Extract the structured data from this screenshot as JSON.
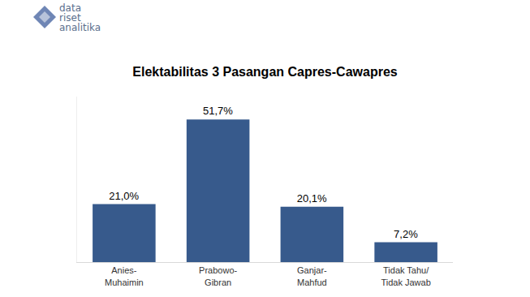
{
  "chart_data": {
    "type": "bar",
    "title": "Elektabilitas 3 Pasangan Capres-Cawapres",
    "logo": "data riset analitika",
    "categories": [
      "Anies-Muhaimin",
      "Prabowo-Gibran",
      "Ganjar-Mahfud",
      "Tidak Tahu/ Tidak Jawab"
    ],
    "values": [
      21.0,
      51.7,
      20.1,
      7.2
    ],
    "value_labels": [
      "21,0%",
      "51,7%",
      "20,1%",
      "7,2%"
    ],
    "color": "#375a8c",
    "ylim": [
      0,
      60
    ],
    "grid": false,
    "data_labels": true,
    "tick_labels": "x"
  }
}
